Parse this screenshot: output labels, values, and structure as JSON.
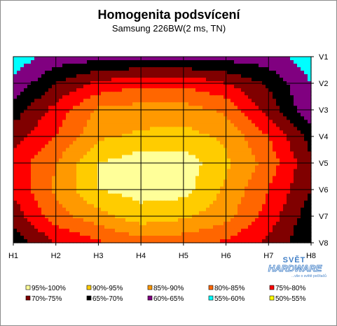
{
  "chart_data": {
    "type": "heatmap",
    "title": "Homogenita podsvícení",
    "subtitle": "Samsung 226BW(2 ms, TN)",
    "x_labels": [
      "H1",
      "H2",
      "H3",
      "H4",
      "H5",
      "H6",
      "H7",
      "H8"
    ],
    "y_labels": [
      "V1",
      "V2",
      "V3",
      "V4",
      "V5",
      "V6",
      "V7",
      "V8"
    ],
    "grid": true,
    "legend_position": "bottom",
    "levels": [
      {
        "name": "95%-100%",
        "min": 95,
        "max": 100,
        "color": "#ffff99"
      },
      {
        "name": "90%-95%",
        "min": 90,
        "max": 95,
        "color": "#ffcc00"
      },
      {
        "name": "85%-90%",
        "min": 85,
        "max": 90,
        "color": "#ff9900"
      },
      {
        "name": "80%-85%",
        "min": 80,
        "max": 85,
        "color": "#ff6600"
      },
      {
        "name": "75%-80%",
        "min": 75,
        "max": 80,
        "color": "#ff0000"
      },
      {
        "name": "70%-75%",
        "min": 70,
        "max": 75,
        "color": "#800000"
      },
      {
        "name": "65%-70%",
        "min": 65,
        "max": 70,
        "color": "#000000"
      },
      {
        "name": "60%-65%",
        "min": 60,
        "max": 65,
        "color": "#800080"
      },
      {
        "name": "55%-60%",
        "min": 55,
        "max": 60,
        "color": "#00ffff"
      },
      {
        "name": "50%-55%",
        "min": 50,
        "max": 55,
        "color": "#ffff00"
      }
    ],
    "values": [
      [
        57,
        62,
        63,
        63,
        63,
        63,
        62,
        57
      ],
      [
        61,
        70,
        76,
        79,
        79,
        75,
        69,
        60
      ],
      [
        67,
        77,
        86,
        87,
        87,
        84,
        73,
        61
      ],
      [
        73,
        80,
        89,
        91,
        92,
        89,
        80,
        68
      ],
      [
        77,
        85,
        95,
        98,
        98,
        91,
        83,
        71
      ],
      [
        76,
        86,
        95,
        97,
        97,
        89,
        80,
        70
      ],
      [
        72,
        83,
        88,
        93,
        91,
        87,
        78,
        67
      ],
      [
        67,
        75,
        79,
        83,
        82,
        79,
        74,
        65
      ]
    ]
  },
  "watermark": {
    "line1": "SVĚT",
    "line2": "HARDWARE",
    "line3": "...vše o světě počítačů"
  }
}
